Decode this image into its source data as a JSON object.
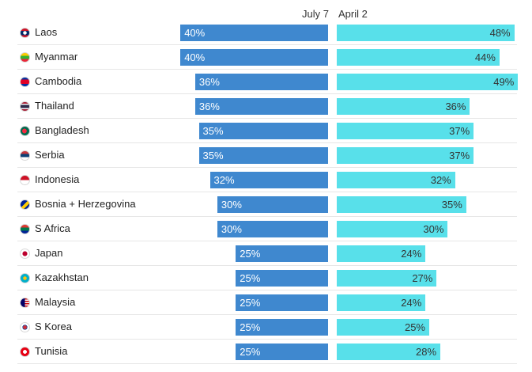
{
  "chart_data": {
    "type": "bar",
    "series": [
      {
        "name": "July 7",
        "values": [
          40,
          40,
          36,
          36,
          35,
          35,
          32,
          30,
          30,
          25,
          25,
          25,
          25,
          25
        ]
      },
      {
        "name": "April 2",
        "values": [
          48,
          44,
          49,
          36,
          37,
          37,
          32,
          35,
          30,
          24,
          27,
          24,
          25,
          28
        ]
      }
    ],
    "categories": [
      "Laos",
      "Myanmar",
      "Cambodia",
      "Thailand",
      "Bangladesh",
      "Serbia",
      "Indonesia",
      "Bosnia + Herzegovina",
      "S Africa",
      "Japan",
      "Kazakhstan",
      "Malaysia",
      "S Korea",
      "Tunisia"
    ],
    "labels_left": [
      "40%",
      "40%",
      "36%",
      "36%",
      "35%",
      "35%",
      "32%",
      "30%",
      "30%",
      "25%",
      "25%",
      "25%",
      "25%",
      "25%"
    ],
    "labels_right": [
      "48%",
      "44%",
      "49%",
      "36%",
      "37%",
      "37%",
      "32%",
      "35%",
      "30%",
      "24%",
      "27%",
      "24%",
      "25%",
      "28%"
    ],
    "flags": [
      "laos-flag-icon",
      "myanmar-flag-icon",
      "cambodia-flag-icon",
      "thailand-flag-icon",
      "bangladesh-flag-icon",
      "serbia-flag-icon",
      "indonesia-flag-icon",
      "bosnia-flag-icon",
      "south-africa-flag-icon",
      "japan-flag-icon",
      "kazakhstan-flag-icon",
      "malaysia-flag-icon",
      "south-korea-flag-icon",
      "tunisia-flag-icon"
    ],
    "title": "",
    "xlabel": "",
    "ylabel": "",
    "ylim": [
      0,
      50
    ]
  },
  "colors": {
    "left_bar": "#3f88cf",
    "right_bar": "#58e0ea"
  }
}
